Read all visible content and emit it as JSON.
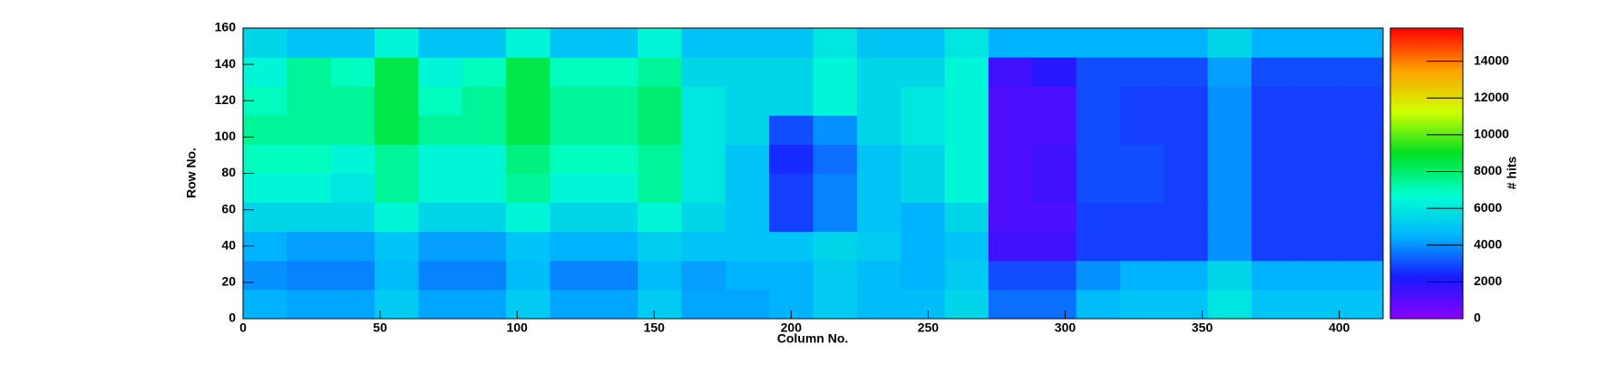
{
  "chart_data": {
    "type": "heatmap",
    "x_label": "Column No.",
    "y_label": "Row No.",
    "z_label": "# hits",
    "xlim": [
      0,
      416
    ],
    "ylim": [
      0,
      160
    ],
    "zlim": [
      0,
      15800
    ],
    "xticks": [
      0,
      50,
      100,
      150,
      200,
      250,
      300,
      350,
      400
    ],
    "yticks": [
      0,
      20,
      40,
      60,
      80,
      100,
      120,
      140,
      160
    ],
    "zticks": [
      0,
      2000,
      4000,
      6000,
      8000,
      10000,
      12000,
      14000
    ],
    "colormap": [
      "#8b00ff",
      "#1a1aff",
      "#00b4ff",
      "#00ffd0",
      "#00e020",
      "#d0ff00",
      "#ffa000",
      "#ff0000"
    ],
    "x_bins": [
      0,
      16,
      32,
      48,
      64,
      80,
      96,
      112,
      128,
      144,
      160,
      176,
      192,
      208,
      224,
      240,
      256,
      272,
      288,
      304,
      320,
      336,
      352,
      368,
      384,
      400,
      416
    ],
    "y_bins": [
      0,
      16,
      32,
      48,
      64,
      80,
      96,
      112,
      128,
      144,
      160
    ],
    "values": [
      [
        4500,
        4300,
        4300,
        5200,
        4300,
        4300,
        5200,
        4300,
        4300,
        5200,
        4300,
        4300,
        4500,
        5200,
        4800,
        4800,
        5500,
        3500,
        3500,
        4800,
        5000,
        5000,
        6000,
        5000,
        5000,
        5000
      ],
      [
        4000,
        3800,
        3800,
        4800,
        3800,
        3800,
        4800,
        3800,
        3800,
        4800,
        4200,
        4500,
        4500,
        5200,
        4800,
        4500,
        5200,
        3000,
        3000,
        4000,
        4500,
        4500,
        5500,
        4500,
        4500,
        4500
      ],
      [
        4500,
        4200,
        4200,
        5000,
        4200,
        4200,
        5000,
        4500,
        4500,
        5300,
        5000,
        5000,
        5000,
        5500,
        5200,
        4500,
        5000,
        1500,
        1500,
        2800,
        2800,
        2800,
        4000,
        2800,
        2800,
        2800
      ],
      [
        5500,
        5500,
        5500,
        6500,
        5500,
        5500,
        6500,
        5500,
        5500,
        6500,
        5500,
        5000,
        2800,
        3800,
        5000,
        4500,
        5500,
        1200,
        1200,
        2800,
        2800,
        2800,
        4000,
        2800,
        2800,
        2800
      ],
      [
        6500,
        6500,
        6000,
        7500,
        6500,
        6500,
        7500,
        6500,
        6500,
        7500,
        6000,
        5000,
        2800,
        3800,
        5000,
        5500,
        6500,
        1200,
        1500,
        3000,
        3000,
        2800,
        4000,
        2800,
        2800,
        2800
      ],
      [
        7000,
        7000,
        6500,
        7500,
        6500,
        6500,
        7800,
        7000,
        7000,
        7500,
        6000,
        5000,
        2500,
        3500,
        5000,
        5500,
        6500,
        1200,
        1500,
        3000,
        3000,
        2800,
        4000,
        2800,
        2800,
        2800
      ],
      [
        7500,
        7500,
        7500,
        8500,
        7500,
        7500,
        8500,
        7500,
        7500,
        8000,
        6000,
        5500,
        3000,
        4000,
        5500,
        6000,
        6500,
        1200,
        1200,
        3000,
        2800,
        2800,
        4000,
        2800,
        2800,
        2800
      ],
      [
        7000,
        7500,
        7500,
        8500,
        7000,
        7500,
        8500,
        7500,
        7500,
        8000,
        6000,
        5500,
        5500,
        6500,
        5500,
        6000,
        6500,
        1200,
        1200,
        3000,
        2800,
        2800,
        4000,
        2800,
        2800,
        2800
      ],
      [
        6500,
        7500,
        7000,
        8500,
        6500,
        7000,
        8500,
        7000,
        7000,
        7500,
        5500,
        5500,
        5500,
        6500,
        5500,
        5500,
        6500,
        1500,
        2000,
        3000,
        3000,
        3000,
        4200,
        3000,
        3000,
        3000
      ],
      [
        5500,
        5000,
        5000,
        6500,
        5000,
        5000,
        6500,
        5000,
        5000,
        6500,
        5000,
        5000,
        5000,
        6000,
        5000,
        5000,
        6000,
        4500,
        4500,
        4500,
        4500,
        4500,
        5500,
        4500,
        4500,
        4500
      ]
    ]
  }
}
